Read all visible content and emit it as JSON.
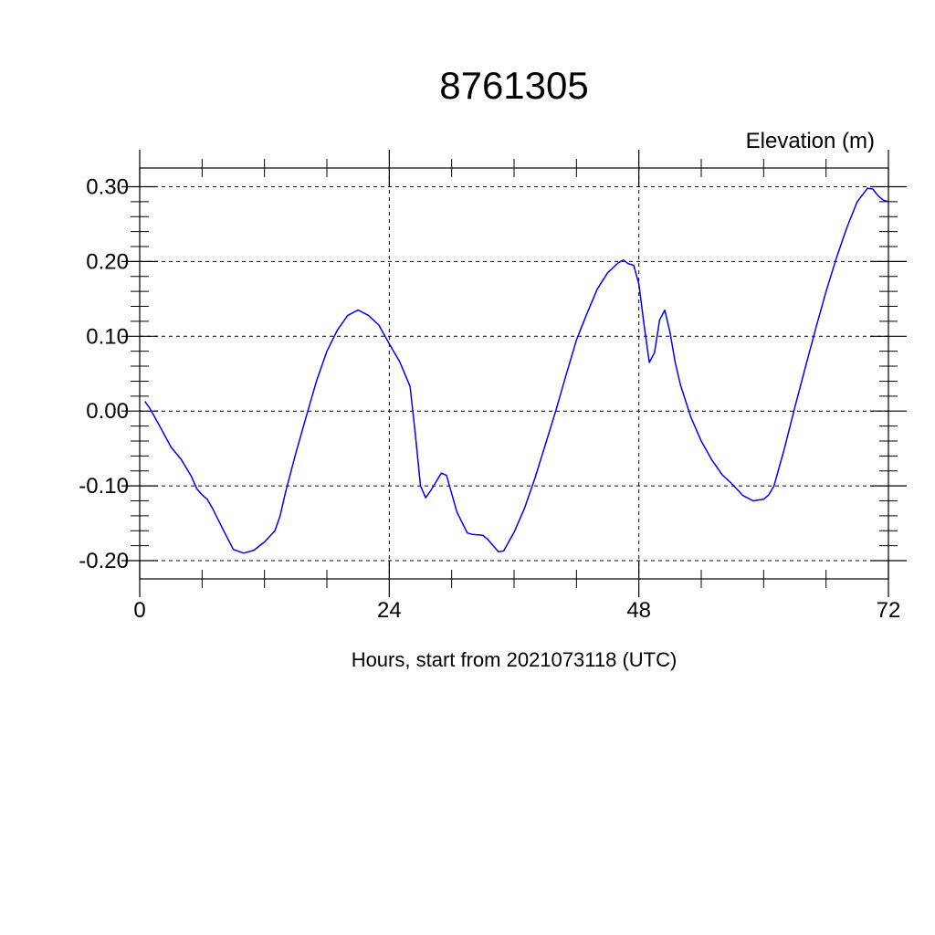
{
  "chart_data": {
    "type": "line",
    "title": "8761305",
    "ylabel": "Elevation (m)",
    "xlabel": "Hours, start from 2021073118 (UTC)",
    "xlim": [
      0,
      72
    ],
    "ylim": [
      -0.2,
      0.3
    ],
    "xticks": [
      0,
      24,
      48,
      72
    ],
    "xtick_labels": [
      "0",
      "24",
      "48",
      "72"
    ],
    "yticks": [
      -0.2,
      -0.1,
      0.0,
      0.1,
      0.2,
      0.3
    ],
    "ytick_labels": [
      "-0.20",
      "-0.10",
      "0.00",
      "0.10",
      "0.20",
      "0.30"
    ],
    "grid": true,
    "series": [
      {
        "color": "#0000ff",
        "x": [
          0.5,
          1.0,
          2.0,
          3.0,
          4.0,
          5.0,
          5.5,
          6.0,
          6.5,
          7.0,
          8.0,
          9.0,
          10.0,
          11.0,
          12.0,
          13.0,
          13.5,
          14.0,
          15.0,
          16.0,
          17.0,
          18.0,
          19.0,
          20.0,
          21.0,
          22.0,
          23.0,
          24.0,
          25.0,
          26.0,
          26.5,
          27.0,
          27.5,
          28.0,
          29.0,
          29.5,
          30.5,
          31.5,
          32.0,
          33.0,
          33.5,
          34.5,
          35.0,
          36.0,
          37.0,
          38.0,
          39.0,
          40.0,
          41.0,
          42.0,
          43.0,
          44.0,
          45.0,
          46.0,
          46.5,
          47.0,
          47.5,
          48.0,
          48.5,
          49.0,
          49.5,
          50.0,
          50.5,
          51.0,
          51.5,
          52.0,
          53.0,
          54.0,
          55.0,
          56.0,
          57.0,
          58.0,
          59.0,
          60.0,
          60.5,
          61.0,
          62.0,
          63.0,
          64.0,
          65.0,
          66.0,
          67.0,
          68.0,
          69.0,
          70.0,
          70.5,
          71.0,
          71.5,
          72.0
        ],
        "y": [
          0.013,
          0.003,
          -0.022,
          -0.048,
          -0.065,
          -0.088,
          -0.104,
          -0.112,
          -0.118,
          -0.13,
          -0.158,
          -0.185,
          -0.19,
          -0.186,
          -0.175,
          -0.16,
          -0.14,
          -0.11,
          -0.057,
          -0.008,
          0.04,
          0.08,
          0.108,
          0.128,
          0.135,
          0.128,
          0.115,
          0.09,
          0.066,
          0.033,
          -0.03,
          -0.1,
          -0.116,
          -0.106,
          -0.083,
          -0.086,
          -0.135,
          -0.163,
          -0.165,
          -0.166,
          -0.172,
          -0.188,
          -0.187,
          -0.162,
          -0.13,
          -0.09,
          -0.045,
          0.0,
          0.048,
          0.095,
          0.13,
          0.163,
          0.185,
          0.198,
          0.202,
          0.197,
          0.195,
          0.17,
          0.115,
          0.065,
          0.078,
          0.122,
          0.135,
          0.105,
          0.065,
          0.035,
          -0.008,
          -0.04,
          -0.065,
          -0.085,
          -0.098,
          -0.113,
          -0.12,
          -0.118,
          -0.112,
          -0.1,
          -0.05,
          0.005,
          0.058,
          0.11,
          0.16,
          0.205,
          0.245,
          0.28,
          0.298,
          0.297,
          0.288,
          0.282,
          0.28
        ]
      }
    ]
  }
}
